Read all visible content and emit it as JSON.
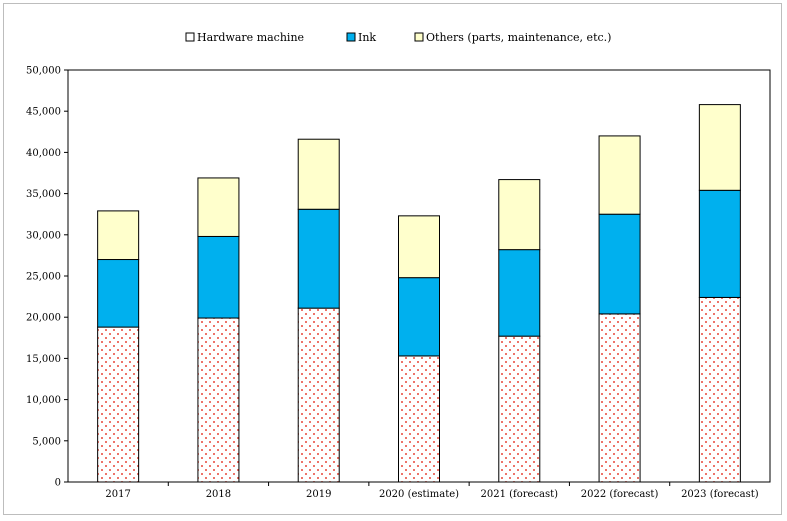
{
  "chart_data": {
    "type": "bar",
    "stacked": true,
    "categories": [
      "2017",
      "2018",
      "2019",
      "2020 (estimate)",
      "2021 (forecast)",
      "2022 (forecast)",
      "2023 (forecast)"
    ],
    "series": [
      {
        "name": "Hardware machine",
        "values": [
          18800,
          19900,
          21100,
          15300,
          17700,
          20400,
          22400
        ]
      },
      {
        "name": "Ink",
        "values": [
          8200,
          9900,
          12000,
          9500,
          10500,
          12100,
          13000
        ]
      },
      {
        "name": "Others (parts, maintenance, etc.)",
        "values": [
          5900,
          7100,
          8500,
          7500,
          8500,
          9500,
          10400
        ]
      }
    ],
    "ylim": [
      0,
      50000
    ],
    "yticks": [
      0,
      5000,
      10000,
      15000,
      20000,
      25000,
      30000,
      35000,
      40000,
      45000,
      50000
    ],
    "ytick_labels": [
      "0",
      "5,000",
      "10,000",
      "15,000",
      "20,000",
      "25,000",
      "30,000",
      "35,000",
      "40,000",
      "45,000",
      "50,000"
    ],
    "grid": false,
    "legend_position": "top",
    "colors": {
      "hardware_fill": "#ffffff",
      "hardware_dots": "#e8483a",
      "ink": "#00b0ee",
      "others": "#ffffcc",
      "outline": "#000000"
    }
  }
}
